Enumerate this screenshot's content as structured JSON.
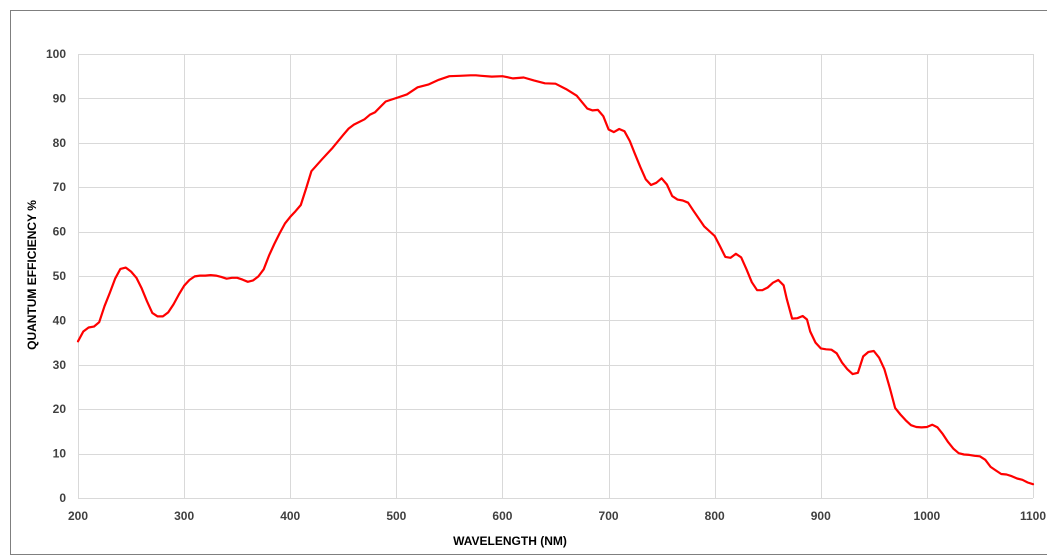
{
  "chart_data": {
    "type": "line",
    "title": "",
    "xlabel": "WAVELENGTH (NM)",
    "ylabel": "QUANTUM EFFICIENCY  %",
    "xlim": [
      200,
      1100
    ],
    "ylim": [
      0,
      100
    ],
    "x_ticks": [
      200,
      300,
      400,
      500,
      600,
      700,
      800,
      900,
      1000,
      1100
    ],
    "y_ticks": [
      0,
      10,
      20,
      30,
      40,
      50,
      60,
      70,
      80,
      90,
      100
    ],
    "grid": true,
    "legend": "none",
    "series": [
      {
        "color": "#ff0000",
        "points": [
          [
            200,
            35.3
          ],
          [
            205,
            37.5
          ],
          [
            210,
            38.4
          ],
          [
            215,
            38.6
          ],
          [
            220,
            39.6
          ],
          [
            225,
            43.2
          ],
          [
            230,
            46.2
          ],
          [
            235,
            49.4
          ],
          [
            240,
            51.6
          ],
          [
            245,
            51.9
          ],
          [
            250,
            51.0
          ],
          [
            255,
            49.6
          ],
          [
            260,
            47.2
          ],
          [
            265,
            44.3
          ],
          [
            270,
            41.7
          ],
          [
            275,
            40.9
          ],
          [
            280,
            40.9
          ],
          [
            285,
            41.8
          ],
          [
            290,
            43.6
          ],
          [
            295,
            45.8
          ],
          [
            300,
            47.8
          ],
          [
            305,
            49.1
          ],
          [
            310,
            49.9
          ],
          [
            315,
            50.1
          ],
          [
            320,
            50.1
          ],
          [
            325,
            50.2
          ],
          [
            330,
            50.1
          ],
          [
            335,
            49.8
          ],
          [
            340,
            49.4
          ],
          [
            345,
            49.6
          ],
          [
            350,
            49.6
          ],
          [
            355,
            49.2
          ],
          [
            360,
            48.7
          ],
          [
            365,
            49.0
          ],
          [
            370,
            49.9
          ],
          [
            375,
            51.5
          ],
          [
            380,
            54.6
          ],
          [
            385,
            57.2
          ],
          [
            390,
            59.6
          ],
          [
            395,
            61.8
          ],
          [
            400,
            63.3
          ],
          [
            405,
            64.6
          ],
          [
            410,
            66.0
          ],
          [
            415,
            69.7
          ],
          [
            420,
            73.6
          ],
          [
            430,
            76.3
          ],
          [
            440,
            78.9
          ],
          [
            450,
            81.8
          ],
          [
            455,
            83.2
          ],
          [
            460,
            84.1
          ],
          [
            470,
            85.3
          ],
          [
            475,
            86.3
          ],
          [
            480,
            86.9
          ],
          [
            490,
            89.3
          ],
          [
            500,
            90.1
          ],
          [
            510,
            90.9
          ],
          [
            520,
            92.5
          ],
          [
            530,
            93.1
          ],
          [
            540,
            94.2
          ],
          [
            550,
            95.0
          ],
          [
            560,
            95.1
          ],
          [
            570,
            95.2
          ],
          [
            575,
            95.2
          ],
          [
            580,
            95.1
          ],
          [
            590,
            94.9
          ],
          [
            600,
            95.0
          ],
          [
            610,
            94.5
          ],
          [
            620,
            94.7
          ],
          [
            630,
            94.0
          ],
          [
            640,
            93.4
          ],
          [
            650,
            93.3
          ],
          [
            660,
            92.1
          ],
          [
            670,
            90.6
          ],
          [
            680,
            87.7
          ],
          [
            685,
            87.3
          ],
          [
            690,
            87.4
          ],
          [
            695,
            86.0
          ],
          [
            700,
            83.0
          ],
          [
            705,
            82.4
          ],
          [
            710,
            83.1
          ],
          [
            715,
            82.6
          ],
          [
            720,
            80.4
          ],
          [
            725,
            77.4
          ],
          [
            730,
            74.5
          ],
          [
            735,
            71.8
          ],
          [
            740,
            70.5
          ],
          [
            745,
            71.0
          ],
          [
            750,
            72.0
          ],
          [
            755,
            70.6
          ],
          [
            760,
            68.0
          ],
          [
            765,
            67.2
          ],
          [
            770,
            67.0
          ],
          [
            775,
            66.5
          ],
          [
            780,
            64.7
          ],
          [
            790,
            61.2
          ],
          [
            800,
            59.0
          ],
          [
            805,
            56.7
          ],
          [
            810,
            54.3
          ],
          [
            815,
            54.1
          ],
          [
            820,
            55.0
          ],
          [
            825,
            54.2
          ],
          [
            830,
            51.5
          ],
          [
            835,
            48.6
          ],
          [
            840,
            46.8
          ],
          [
            845,
            46.8
          ],
          [
            850,
            47.4
          ],
          [
            855,
            48.5
          ],
          [
            860,
            49.1
          ],
          [
            865,
            47.9
          ],
          [
            868,
            44.8
          ],
          [
            873,
            40.4
          ],
          [
            878,
            40.5
          ],
          [
            883,
            41.0
          ],
          [
            887,
            40.2
          ],
          [
            890,
            37.5
          ],
          [
            895,
            35.0
          ],
          [
            900,
            33.7
          ],
          [
            905,
            33.5
          ],
          [
            910,
            33.4
          ],
          [
            915,
            32.6
          ],
          [
            920,
            30.5
          ],
          [
            925,
            29.0
          ],
          [
            930,
            27.9
          ],
          [
            935,
            28.2
          ],
          [
            940,
            31.9
          ],
          [
            945,
            32.9
          ],
          [
            950,
            33.1
          ],
          [
            955,
            31.6
          ],
          [
            960,
            29.0
          ],
          [
            965,
            24.8
          ],
          [
            970,
            20.3
          ],
          [
            975,
            18.8
          ],
          [
            980,
            17.5
          ],
          [
            985,
            16.4
          ],
          [
            990,
            16.0
          ],
          [
            995,
            15.9
          ],
          [
            1000,
            16.0
          ],
          [
            1005,
            16.5
          ],
          [
            1010,
            15.9
          ],
          [
            1015,
            14.4
          ],
          [
            1020,
            12.6
          ],
          [
            1025,
            11.1
          ],
          [
            1030,
            10.1
          ],
          [
            1035,
            9.8
          ],
          [
            1040,
            9.7
          ],
          [
            1045,
            9.5
          ],
          [
            1050,
            9.4
          ],
          [
            1055,
            8.6
          ],
          [
            1060,
            7.0
          ],
          [
            1065,
            6.2
          ],
          [
            1070,
            5.4
          ],
          [
            1075,
            5.3
          ],
          [
            1080,
            4.9
          ],
          [
            1085,
            4.4
          ],
          [
            1090,
            4.1
          ],
          [
            1095,
            3.5
          ],
          [
            1100,
            3.1
          ]
        ]
      }
    ]
  }
}
